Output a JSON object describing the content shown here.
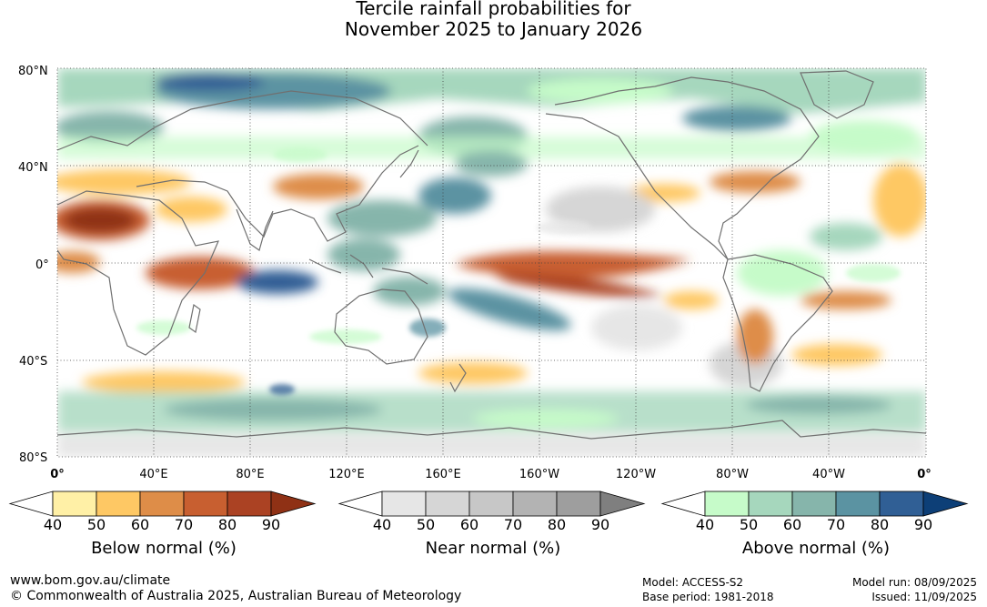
{
  "title": {
    "line1": "Tercile rainfall probabilities for",
    "line2": "November 2025 to January 2026"
  },
  "map": {
    "lat_labels": [
      "80°N",
      "40°N",
      "0°",
      "40°S",
      "80°S"
    ],
    "lon_labels": [
      "0°",
      "40°E",
      "80°E",
      "120°E",
      "160°E",
      "160°W",
      "120°W",
      "80°W",
      "40°W",
      "0°"
    ],
    "colors": {
      "ocean_gridline": "#404040",
      "coastline": "#707070"
    },
    "categories": {
      "below": [
        "#fff0a6",
        "#fec864",
        "#de8d48",
        "#c85f30",
        "#ab4223",
        "#8f3115"
      ],
      "near": [
        "#e6e6e6",
        "#d6d6d6",
        "#c7c7c7",
        "#b3b3b3",
        "#9e9e9e",
        "#7f7f7f"
      ],
      "above": [
        "#c6fbc9",
        "#a6d7bd",
        "#86b5ab",
        "#5b93a2",
        "#305f95",
        "#0d3f77"
      ]
    }
  },
  "legends": {
    "below": {
      "ticks": [
        "40",
        "50",
        "60",
        "70",
        "80",
        "90"
      ],
      "caption": "Below normal (%)"
    },
    "near": {
      "ticks": [
        "40",
        "50",
        "60",
        "70",
        "80",
        "90"
      ],
      "caption": "Near normal (%)"
    },
    "above": {
      "ticks": [
        "40",
        "50",
        "60",
        "70",
        "80",
        "90"
      ],
      "caption": "Above normal (%)"
    }
  },
  "footer": {
    "website": "www.bom.gov.au/climate",
    "copyright": "© Commonwealth of Australia 2025, Australian Bureau of Meteorology",
    "model": "Model: ACCESS-S2",
    "base_period": "Base period: 1981-2018",
    "model_run": "Model run: 08/09/2025",
    "issued": "Issued: 11/09/2025"
  }
}
